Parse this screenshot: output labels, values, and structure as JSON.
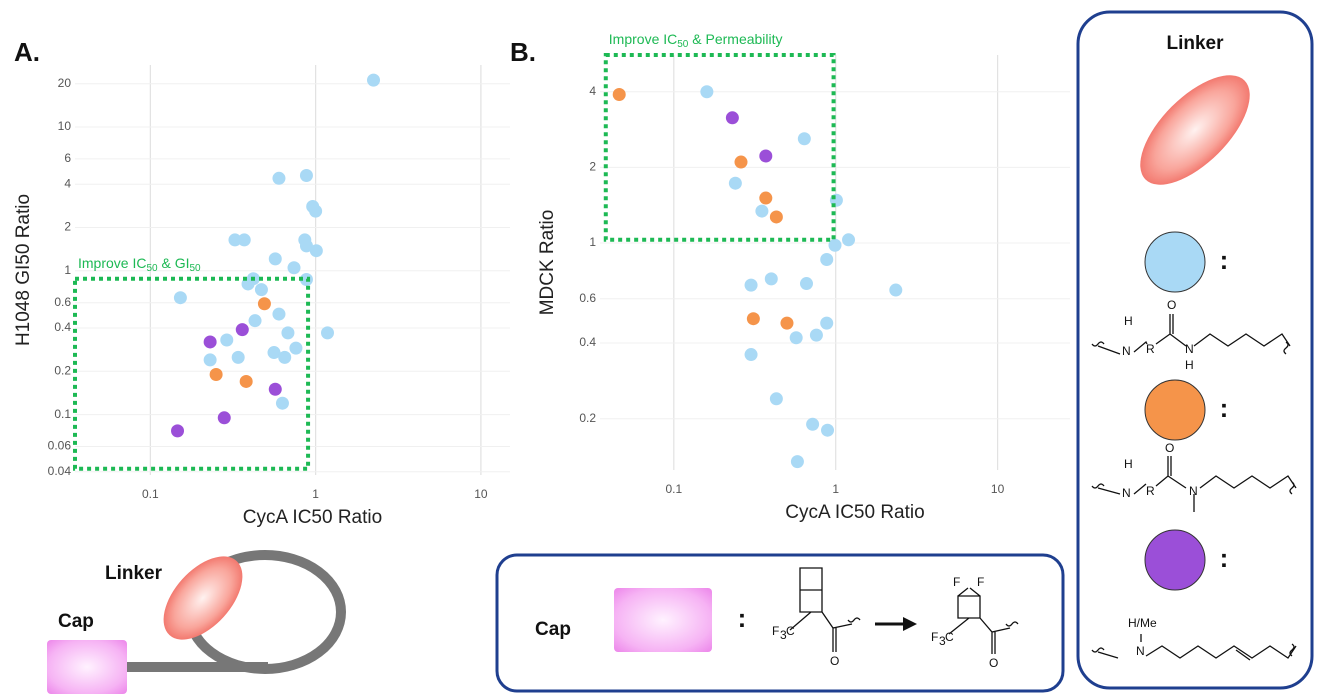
{
  "chart_data": [
    {
      "type": "scatter",
      "label": "A.",
      "x_label": "CycA IC50 Ratio",
      "y_label": "H1048 GI50 Ratio",
      "xscale": "log",
      "yscale": "log",
      "grid": true,
      "xlim": [
        0.035,
        15
      ],
      "ylim": [
        0.038,
        27
      ],
      "xticks": [
        0.1,
        1,
        10
      ],
      "yticks": [
        0.04,
        0.06,
        0.1,
        0.2,
        0.4,
        0.6,
        1,
        2,
        4,
        6,
        10,
        20
      ],
      "annotation": {
        "parts": [
          "Improve IC",
          "50",
          " & GI",
          "50"
        ],
        "color": "#1db954",
        "xrange": [
          0.035,
          0.9
        ],
        "yrange": [
          0.042,
          0.88
        ]
      },
      "series": [
        {
          "color": "#a9d9f5",
          "x": [
            2.24,
            0.6,
            0.88,
            0.96,
            1.0,
            0.325,
            0.37,
            0.86,
            0.88,
            1.01,
            0.57,
            0.74,
            0.42,
            0.39,
            0.47,
            0.88,
            0.152,
            0.6,
            0.43,
            0.68,
            1.18,
            0.29,
            0.76,
            0.56,
            0.23,
            0.34,
            0.65,
            0.63
          ],
          "values": [
            21.2,
            4.4,
            4.6,
            2.8,
            2.6,
            1.64,
            1.64,
            1.64,
            1.49,
            1.38,
            1.21,
            1.05,
            0.88,
            0.81,
            0.74,
            0.87,
            0.65,
            0.5,
            0.45,
            0.37,
            0.37,
            0.33,
            0.29,
            0.27,
            0.24,
            0.25,
            0.25,
            0.12
          ]
        },
        {
          "color": "#f5944a",
          "x": [
            0.49,
            0.25,
            0.38
          ],
          "values": [
            0.59,
            0.19,
            0.17
          ]
        },
        {
          "color": "#9b4fd8",
          "x": [
            0.23,
            0.36,
            0.57,
            0.28,
            0.146
          ],
          "values": [
            0.32,
            0.39,
            0.15,
            0.095,
            0.077
          ]
        }
      ]
    },
    {
      "type": "scatter",
      "label": "B.",
      "x_label": "CycA IC50 Ratio",
      "y_label": "MDCK Ratio",
      "xscale": "log",
      "yscale": "log",
      "grid": true,
      "xlim": [
        0.035,
        28
      ],
      "ylim": [
        0.125,
        5.6
      ],
      "xticks": [
        0.1,
        1,
        10
      ],
      "yticks": [
        0.2,
        0.4,
        0.6,
        1,
        2,
        4
      ],
      "annotation": {
        "parts": [
          "Improve IC",
          "50",
          " & Permeability"
        ],
        "color": "#1db954",
        "xrange": [
          0.038,
          0.97
        ],
        "yrange": [
          1.03,
          5.6
        ]
      },
      "series": [
        {
          "color": "#a9d9f5",
          "x": [
            0.16,
            0.64,
            0.24,
            0.35,
            1.01,
            0.99,
            1.2,
            0.88,
            2.35,
            0.4,
            0.3,
            0.66,
            0.88,
            0.76,
            0.57,
            0.3,
            0.43,
            0.72,
            0.89,
            0.58
          ],
          "values": [
            4.0,
            2.6,
            1.73,
            1.34,
            1.48,
            0.98,
            1.03,
            0.86,
            0.65,
            0.72,
            0.68,
            0.69,
            0.48,
            0.43,
            0.42,
            0.36,
            0.24,
            0.19,
            0.18,
            0.135
          ]
        },
        {
          "color": "#f5944a",
          "x": [
            0.046,
            0.26,
            0.37,
            0.43,
            0.31,
            0.5
          ],
          "values": [
            3.9,
            2.1,
            1.51,
            1.27,
            0.5,
            0.48
          ]
        },
        {
          "color": "#9b4fd8",
          "x": [
            0.23,
            0.37
          ],
          "values": [
            3.15,
            2.22
          ]
        }
      ]
    }
  ],
  "schematic": {
    "linker": "Linker",
    "cap": "Cap"
  },
  "linker_panel": {
    "title": "Linker",
    "colon": ":",
    "structures": [
      [
        "H",
        "N",
        "R",
        "O",
        "N",
        "H"
      ],
      [
        "H",
        "N",
        "R",
        "O",
        "N"
      ],
      [
        "H/Me",
        "N"
      ]
    ]
  },
  "cap_panel": {
    "title": "Cap",
    "colon": ":",
    "structures": [
      [
        "F",
        "3",
        "C",
        "O"
      ],
      [
        "F",
        "F",
        "F",
        "3",
        "C",
        "O"
      ]
    ]
  }
}
